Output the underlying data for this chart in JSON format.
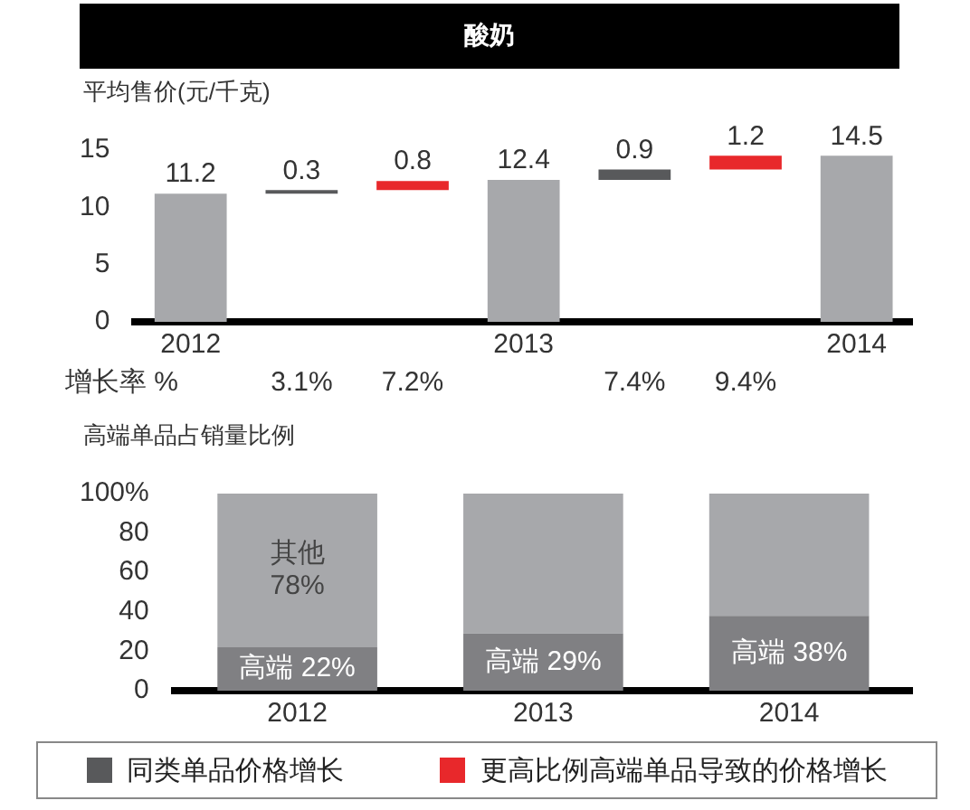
{
  "chart_data": [
    {
      "type": "bar",
      "title": "酸奶",
      "ylabel": "平均售价(元/千克)",
      "categories": [
        "2012",
        null,
        null,
        "2013",
        null,
        null,
        "2014"
      ],
      "series": [
        {
          "color": "#a7a8ab",
          "values": [
            11.2,
            null,
            null,
            12.4,
            null,
            null,
            14.5
          ]
        },
        {
          "name": "同类单品价格增长",
          "color": "#58595b",
          "values": [
            null,
            0.3,
            null,
            null,
            0.9,
            null,
            null
          ],
          "base": [
            null,
            11.2,
            null,
            null,
            12.4,
            null,
            null
          ]
        },
        {
          "name": "更高比例高端单品导致的价格增长",
          "color": "#e8282b",
          "values": [
            null,
            null,
            0.8,
            null,
            null,
            1.2,
            null
          ],
          "base": [
            null,
            null,
            11.5,
            null,
            null,
            13.3,
            null
          ]
        }
      ],
      "ylim": [
        0,
        15
      ],
      "yticks": [
        0,
        5,
        10,
        15
      ],
      "grid": false,
      "data_labels": true,
      "legend": "bottom",
      "annotations": [
        "增长率 %",
        "3.1%",
        "7.2%",
        "7.4%",
        "9.4%"
      ]
    },
    {
      "type": "bar",
      "ylabel": "高端单品占销量比例",
      "stacked": true,
      "categories": [
        "2012",
        "2013",
        "2014"
      ],
      "series": [
        {
          "color": "#808083",
          "values": [
            22,
            29,
            38
          ],
          "value_labels": [
            "高端 22%",
            "高端 29%",
            "高端 38%"
          ]
        },
        {
          "color": "#a7a8ab",
          "values": [
            78,
            71,
            62
          ],
          "value_labels": [
            "其他 78%",
            null,
            null
          ]
        }
      ],
      "ylim": [
        0,
        100
      ],
      "yticks": [
        0,
        20,
        40,
        60,
        80,
        {
          "value": 100,
          "label": "100%"
        }
      ],
      "grid": false,
      "legend": false
    }
  ]
}
